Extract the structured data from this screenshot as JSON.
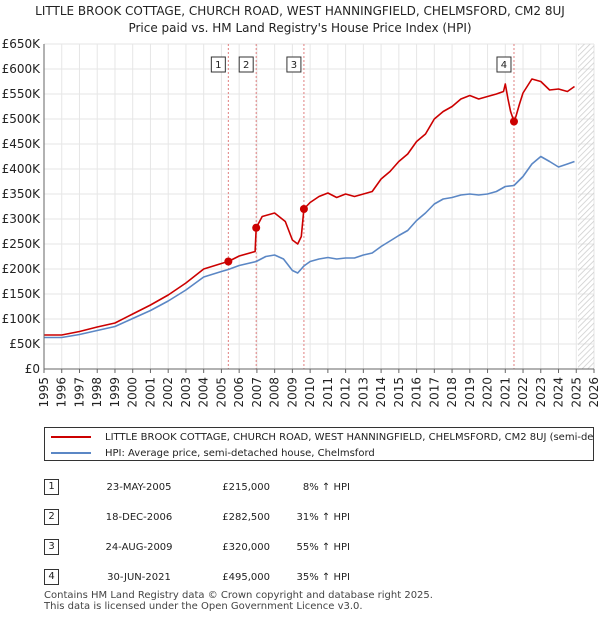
{
  "title_line1": "LITTLE BROOK COTTAGE, CHURCH ROAD, WEST HANNINGFIELD, CHELMSFORD, CM2 8UJ",
  "title_line2": "Price paid vs. HM Land Registry's House Price Index (HPI)",
  "colors": {
    "property": "#cc0000",
    "hpi": "#5b87c5",
    "marker_line": "#e08080",
    "hatch": "#cccccc",
    "grid": "#e6e6e6"
  },
  "chart_data": {
    "type": "line",
    "x_range": [
      1995,
      2026
    ],
    "ylim": [
      0,
      650000
    ],
    "y_ticks": [
      {
        "value": 0,
        "label": "£0"
      },
      {
        "value": 50000,
        "label": "£50K"
      },
      {
        "value": 100000,
        "label": "£100K"
      },
      {
        "value": 150000,
        "label": "£150K"
      },
      {
        "value": 200000,
        "label": "£200K"
      },
      {
        "value": 250000,
        "label": "£250K"
      },
      {
        "value": 300000,
        "label": "£300K"
      },
      {
        "value": 350000,
        "label": "£350K"
      },
      {
        "value": 400000,
        "label": "£400K"
      },
      {
        "value": 450000,
        "label": "£450K"
      },
      {
        "value": 500000,
        "label": "£500K"
      },
      {
        "value": 550000,
        "label": "£550K"
      },
      {
        "value": 600000,
        "label": "£600K"
      },
      {
        "value": 650000,
        "label": "£650K"
      }
    ],
    "x_ticks": [
      "1995",
      "1996",
      "1997",
      "1998",
      "1999",
      "2000",
      "2001",
      "2002",
      "2003",
      "2004",
      "2005",
      "2006",
      "2007",
      "2008",
      "2009",
      "2010",
      "2011",
      "2012",
      "2013",
      "2014",
      "2015",
      "2016",
      "2017",
      "2018",
      "2019",
      "2020",
      "2021",
      "2022",
      "2023",
      "2024",
      "2025",
      "2026"
    ],
    "future_hatch_from": 2025.1,
    "series": [
      {
        "name": "LITTLE BROOK COTTAGE, CHURCH ROAD, WEST HANNINGFIELD, CHELMSFORD, CM2 8UJ (semi-detached house)",
        "color": "#cc0000",
        "points": [
          [
            1995.0,
            68000
          ],
          [
            1996.0,
            68000
          ],
          [
            1997.0,
            75000
          ],
          [
            1998.0,
            84000
          ],
          [
            1999.0,
            92000
          ],
          [
            2000.0,
            110000
          ],
          [
            2001.0,
            128000
          ],
          [
            2002.0,
            148000
          ],
          [
            2003.0,
            172000
          ],
          [
            2004.0,
            200000
          ],
          [
            2005.0,
            211000
          ],
          [
            2005.39,
            215000
          ],
          [
            2006.0,
            226000
          ],
          [
            2006.9,
            235000
          ],
          [
            2006.96,
            282500
          ],
          [
            2007.3,
            305000
          ],
          [
            2008.0,
            312000
          ],
          [
            2008.6,
            295000
          ],
          [
            2009.0,
            258000
          ],
          [
            2009.3,
            250000
          ],
          [
            2009.5,
            265000
          ],
          [
            2009.65,
            320000
          ],
          [
            2010.0,
            333000
          ],
          [
            2010.5,
            345000
          ],
          [
            2011.0,
            352000
          ],
          [
            2011.5,
            343000
          ],
          [
            2012.0,
            350000
          ],
          [
            2012.5,
            345000
          ],
          [
            2013.0,
            350000
          ],
          [
            2013.5,
            355000
          ],
          [
            2014.0,
            380000
          ],
          [
            2014.5,
            395000
          ],
          [
            2015.0,
            415000
          ],
          [
            2015.5,
            430000
          ],
          [
            2016.0,
            455000
          ],
          [
            2016.5,
            470000
          ],
          [
            2017.0,
            500000
          ],
          [
            2017.5,
            515000
          ],
          [
            2018.0,
            525000
          ],
          [
            2018.5,
            540000
          ],
          [
            2019.0,
            547000
          ],
          [
            2019.5,
            540000
          ],
          [
            2020.0,
            545000
          ],
          [
            2020.5,
            550000
          ],
          [
            2020.9,
            555000
          ],
          [
            2021.0,
            570000
          ],
          [
            2021.15,
            540000
          ],
          [
            2021.3,
            515000
          ],
          [
            2021.49,
            495000
          ],
          [
            2021.6,
            505000
          ],
          [
            2021.8,
            530000
          ],
          [
            2022.0,
            552000
          ],
          [
            2022.5,
            580000
          ],
          [
            2023.0,
            575000
          ],
          [
            2023.5,
            558000
          ],
          [
            2024.0,
            560000
          ],
          [
            2024.5,
            555000
          ],
          [
            2024.9,
            565000
          ]
        ]
      },
      {
        "name": "HPI: Average price, semi-detached house, Chelmsford",
        "color": "#5b87c5",
        "points": [
          [
            1995.0,
            63000
          ],
          [
            1996.0,
            63000
          ],
          [
            1997.0,
            69000
          ],
          [
            1998.0,
            77000
          ],
          [
            1999.0,
            85000
          ],
          [
            2000.0,
            101000
          ],
          [
            2001.0,
            117000
          ],
          [
            2002.0,
            136000
          ],
          [
            2003.0,
            158000
          ],
          [
            2004.0,
            184000
          ],
          [
            2005.0,
            195000
          ],
          [
            2005.39,
            199000
          ],
          [
            2006.0,
            207000
          ],
          [
            2006.96,
            215000
          ],
          [
            2007.5,
            225000
          ],
          [
            2008.0,
            228000
          ],
          [
            2008.5,
            220000
          ],
          [
            2009.0,
            197000
          ],
          [
            2009.3,
            192000
          ],
          [
            2009.65,
            206000
          ],
          [
            2010.0,
            215000
          ],
          [
            2010.5,
            220000
          ],
          [
            2011.0,
            223000
          ],
          [
            2011.5,
            220000
          ],
          [
            2012.0,
            222000
          ],
          [
            2012.5,
            222000
          ],
          [
            2013.0,
            228000
          ],
          [
            2013.5,
            232000
          ],
          [
            2014.0,
            245000
          ],
          [
            2014.5,
            256000
          ],
          [
            2015.0,
            267000
          ],
          [
            2015.5,
            277000
          ],
          [
            2016.0,
            297000
          ],
          [
            2016.5,
            312000
          ],
          [
            2017.0,
            330000
          ],
          [
            2017.5,
            340000
          ],
          [
            2018.0,
            343000
          ],
          [
            2018.5,
            348000
          ],
          [
            2019.0,
            350000
          ],
          [
            2019.5,
            348000
          ],
          [
            2020.0,
            350000
          ],
          [
            2020.5,
            355000
          ],
          [
            2021.0,
            365000
          ],
          [
            2021.49,
            367000
          ],
          [
            2022.0,
            385000
          ],
          [
            2022.5,
            410000
          ],
          [
            2023.0,
            425000
          ],
          [
            2023.5,
            415000
          ],
          [
            2024.0,
            404000
          ],
          [
            2024.5,
            410000
          ],
          [
            2024.9,
            415000
          ]
        ]
      }
    ],
    "sales": [
      {
        "num": "1",
        "x": 2005.39,
        "value": 215000
      },
      {
        "num": "2",
        "x": 2006.96,
        "value": 282500
      },
      {
        "num": "3",
        "x": 2009.65,
        "value": 320000
      },
      {
        "num": "4",
        "x": 2021.49,
        "value": 495000
      }
    ]
  },
  "legend": {
    "property_label": "LITTLE BROOK COTTAGE, CHURCH ROAD, WEST HANNINGFIELD, CHELMSFORD, CM2 8UJ (semi-detached house)",
    "hpi_label": "HPI: Average price, semi-detached house, Chelmsford"
  },
  "transactions": [
    {
      "num": "1",
      "date": "23-MAY-2005",
      "price": "£215,000",
      "hpi": "8% ↑ HPI"
    },
    {
      "num": "2",
      "date": "18-DEC-2006",
      "price": "£282,500",
      "hpi": "31% ↑ HPI"
    },
    {
      "num": "3",
      "date": "24-AUG-2009",
      "price": "£320,000",
      "hpi": "55% ↑ HPI"
    },
    {
      "num": "4",
      "date": "30-JUN-2021",
      "price": "£495,000",
      "hpi": "35% ↑ HPI"
    }
  ],
  "footer_line1": "Contains HM Land Registry data © Crown copyright and database right 2025.",
  "footer_line2": "This data is licensed under the Open Government Licence v3.0."
}
